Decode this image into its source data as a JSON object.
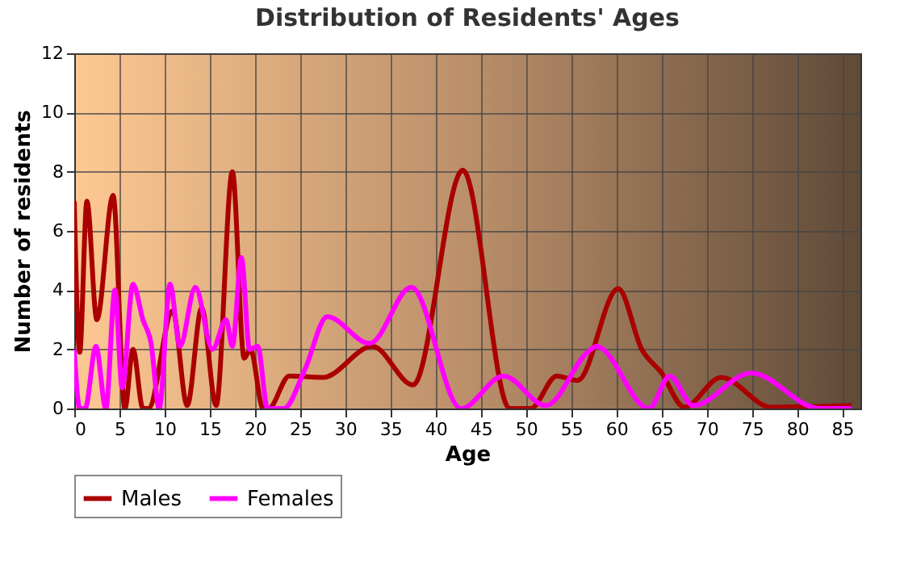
{
  "chart_data": {
    "type": "line",
    "title": "Distribution of Residents' Ages",
    "xlabel": "Age",
    "ylabel": "Number of residents",
    "xlim": [
      0,
      87
    ],
    "ylim": [
      0,
      12
    ],
    "xticks": [
      0,
      5,
      10,
      15,
      20,
      25,
      30,
      35,
      40,
      45,
      50,
      55,
      60,
      65,
      70,
      75,
      80,
      85
    ],
    "yticks": [
      0,
      2,
      4,
      6,
      8,
      10,
      12
    ],
    "grid": true,
    "legend": "bottom",
    "marker": "none",
    "line_style": "solid",
    "series": [
      {
        "name": "Males",
        "color": "#aa0000",
        "x": [
          0,
          0.6,
          1.4,
          2.5,
          4.3,
          5.6,
          6.5,
          7.6,
          8.2,
          10.9,
          12.5,
          14.1,
          15.7,
          17.5,
          18.8,
          19.5,
          20.9,
          21.5,
          23.8,
          27.5,
          33,
          37.5,
          43,
          48.2,
          50.5,
          53.4,
          55.7,
          60.2,
          62.8,
          65,
          67.5,
          71.6,
          77.1,
          86
        ],
        "values": [
          7,
          1.9,
          7,
          3,
          7.2,
          0,
          2,
          0,
          0,
          3.3,
          0.1,
          3.4,
          0.1,
          8,
          1.7,
          2,
          0,
          0,
          1.1,
          1.05,
          2.1,
          0.8,
          8.05,
          0,
          0,
          1.1,
          0.95,
          4.05,
          2,
          1.2,
          0.05,
          1.05,
          0.05,
          0.1
        ]
      },
      {
        "name": "Females",
        "color": "#ff00ff",
        "x": [
          0,
          0.6,
          1.2,
          2.4,
          3.5,
          4.5,
          5.3,
          6.5,
          7.6,
          8.5,
          9.4,
          10.6,
          11.7,
          13.4,
          15.3,
          16.8,
          17.5,
          18.5,
          19.4,
          20.3,
          21.4,
          23.2,
          25.5,
          28,
          32.7,
          37.3,
          42.8,
          47.5,
          52.2,
          56.8,
          57.8,
          63.6,
          65.9,
          68.5,
          74.9,
          82.5,
          86
        ],
        "values": [
          2,
          0,
          0,
          2.1,
          0,
          4,
          0.7,
          4.2,
          3,
          2.2,
          0,
          4.2,
          2.1,
          4.1,
          2,
          3,
          2.1,
          5.1,
          2,
          2.1,
          0,
          0,
          1.3,
          3.1,
          2.2,
          4.1,
          0,
          1.1,
          0.1,
          1.9,
          2.1,
          0,
          1.1,
          0.1,
          1.2,
          0,
          0
        ]
      }
    ]
  }
}
